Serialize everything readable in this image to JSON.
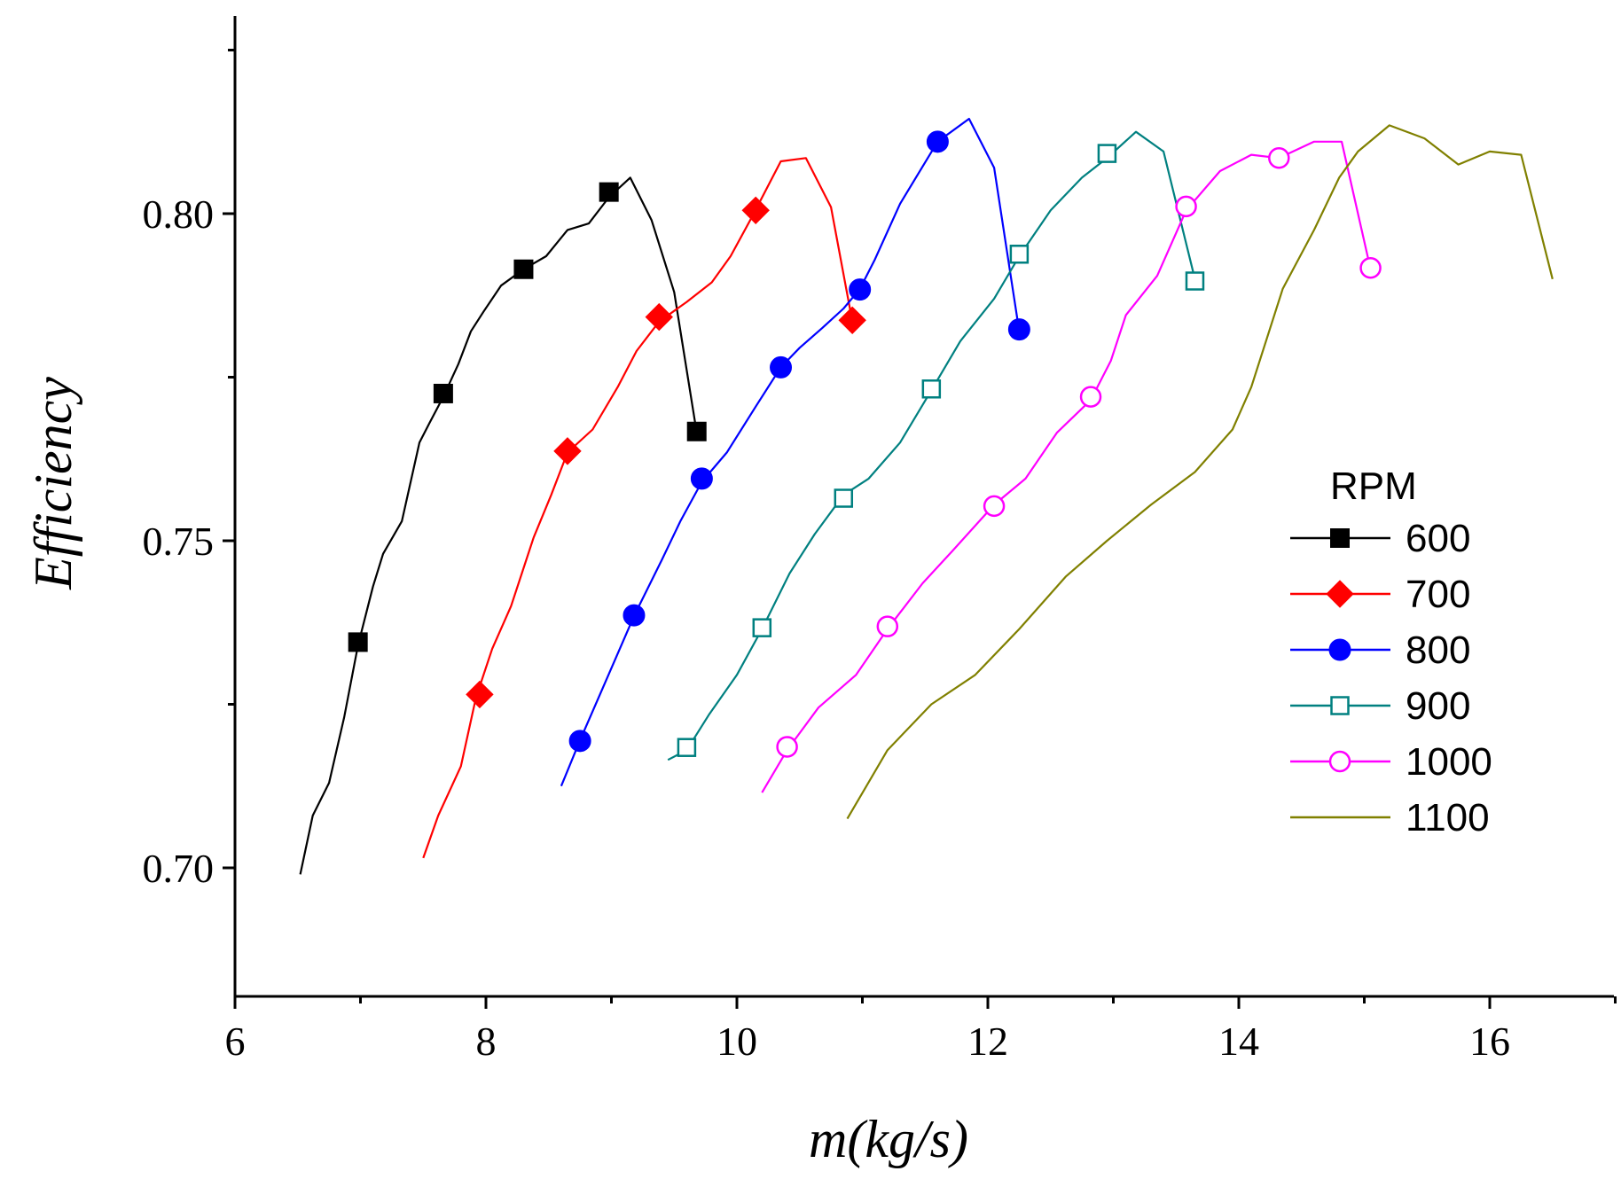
{
  "chart_data": {
    "type": "line",
    "xlabel": "m(kg/s)",
    "ylabel": "Efficiency",
    "xlim": [
      6,
      17
    ],
    "ylim": [
      0.68,
      0.83
    ],
    "xticks": [
      6,
      8,
      10,
      12,
      14,
      16
    ],
    "xtick_labels": [
      "6",
      "8",
      "10",
      "12",
      "14",
      "16"
    ],
    "yticks": [
      0.7,
      0.75,
      0.8
    ],
    "ytick_labels": [
      "0.70",
      "0.75",
      "0.80"
    ],
    "legend_title": "RPM",
    "legend_position": "right",
    "series": [
      {
        "name": "600",
        "color": "#000000",
        "marker": "square-filled",
        "line": [
          [
            6.52,
            0.699
          ],
          [
            6.62,
            0.708
          ],
          [
            6.75,
            0.713
          ],
          [
            6.87,
            0.723
          ],
          [
            6.98,
            0.734
          ],
          [
            7.1,
            0.743
          ],
          [
            7.18,
            0.748
          ],
          [
            7.33,
            0.753
          ],
          [
            7.47,
            0.765
          ],
          [
            7.55,
            0.768
          ],
          [
            7.66,
            0.772
          ],
          [
            7.78,
            0.777
          ],
          [
            7.88,
            0.782
          ],
          [
            7.98,
            0.785
          ],
          [
            8.12,
            0.789
          ],
          [
            8.3,
            0.7915
          ],
          [
            8.48,
            0.7935
          ],
          [
            8.65,
            0.7975
          ],
          [
            8.82,
            0.7985
          ],
          [
            8.98,
            0.8025
          ],
          [
            9.15,
            0.8055
          ],
          [
            9.32,
            0.799
          ],
          [
            9.5,
            0.788
          ],
          [
            9.68,
            0.7665
          ]
        ],
        "markers": [
          [
            6.98,
            0.7345
          ],
          [
            7.66,
            0.7725
          ],
          [
            8.3,
            0.7915
          ],
          [
            8.98,
            0.8033
          ],
          [
            9.68,
            0.7667
          ]
        ]
      },
      {
        "name": "700",
        "color": "#ff0000",
        "marker": "diamond-filled",
        "line": [
          [
            7.5,
            0.7015
          ],
          [
            7.62,
            0.708
          ],
          [
            7.8,
            0.7155
          ],
          [
            7.92,
            0.726
          ],
          [
            8.05,
            0.7335
          ],
          [
            8.2,
            0.74
          ],
          [
            8.38,
            0.7505
          ],
          [
            8.52,
            0.757
          ],
          [
            8.65,
            0.7635
          ],
          [
            8.85,
            0.767
          ],
          [
            9.05,
            0.7735
          ],
          [
            9.2,
            0.779
          ],
          [
            9.38,
            0.7835
          ],
          [
            9.6,
            0.7865
          ],
          [
            9.8,
            0.7895
          ],
          [
            9.95,
            0.7935
          ],
          [
            10.12,
            0.7995
          ],
          [
            10.35,
            0.808
          ],
          [
            10.55,
            0.8085
          ],
          [
            10.75,
            0.801
          ],
          [
            10.92,
            0.7835
          ]
        ],
        "markers": [
          [
            7.95,
            0.7265
          ],
          [
            8.65,
            0.7637
          ],
          [
            9.38,
            0.7842
          ],
          [
            10.15,
            0.8005
          ],
          [
            10.92,
            0.7837
          ]
        ]
      },
      {
        "name": "800",
        "color": "#0000ff",
        "marker": "circle-filled",
        "line": [
          [
            8.6,
            0.7125
          ],
          [
            8.75,
            0.7195
          ],
          [
            8.92,
            0.727
          ],
          [
            9.18,
            0.7385
          ],
          [
            9.4,
            0.747
          ],
          [
            9.55,
            0.753
          ],
          [
            9.72,
            0.759
          ],
          [
            9.92,
            0.7635
          ],
          [
            10.15,
            0.7705
          ],
          [
            10.35,
            0.7765
          ],
          [
            10.5,
            0.7795
          ],
          [
            10.68,
            0.7825
          ],
          [
            10.85,
            0.7855
          ],
          [
            10.98,
            0.7885
          ],
          [
            11.1,
            0.793
          ],
          [
            11.3,
            0.8015
          ],
          [
            11.6,
            0.811
          ],
          [
            11.85,
            0.8145
          ],
          [
            12.05,
            0.807
          ],
          [
            12.25,
            0.782
          ]
        ],
        "markers": [
          [
            8.75,
            0.7194
          ],
          [
            9.18,
            0.7386
          ],
          [
            9.72,
            0.7595
          ],
          [
            10.35,
            0.7765
          ],
          [
            10.98,
            0.7884
          ],
          [
            11.6,
            0.811
          ],
          [
            12.25,
            0.7823
          ]
        ]
      },
      {
        "name": "900",
        "color": "#008080",
        "marker": "square-open",
        "line": [
          [
            9.45,
            0.7165
          ],
          [
            9.6,
            0.718
          ],
          [
            9.78,
            0.7235
          ],
          [
            10.0,
            0.7295
          ],
          [
            10.2,
            0.7365
          ],
          [
            10.42,
            0.745
          ],
          [
            10.62,
            0.751
          ],
          [
            10.85,
            0.757
          ],
          [
            11.05,
            0.7595
          ],
          [
            11.3,
            0.765
          ],
          [
            11.55,
            0.773
          ],
          [
            11.78,
            0.7805
          ],
          [
            12.05,
            0.787
          ],
          [
            12.25,
            0.7935
          ],
          [
            12.5,
            0.8005
          ],
          [
            12.75,
            0.8055
          ],
          [
            12.95,
            0.8085
          ],
          [
            13.18,
            0.8125
          ],
          [
            13.4,
            0.8095
          ],
          [
            13.65,
            0.79
          ]
        ],
        "markers": [
          [
            9.6,
            0.7184
          ],
          [
            10.2,
            0.7367
          ],
          [
            10.85,
            0.7565
          ],
          [
            11.55,
            0.7732
          ],
          [
            12.25,
            0.7938
          ],
          [
            12.95,
            0.8092
          ],
          [
            13.65,
            0.7897
          ]
        ]
      },
      {
        "name": "1000",
        "color": "#ff00ff",
        "marker": "circle-open",
        "line": [
          [
            10.2,
            0.7115
          ],
          [
            10.4,
            0.718
          ],
          [
            10.65,
            0.7245
          ],
          [
            10.95,
            0.7295
          ],
          [
            11.2,
            0.7365
          ],
          [
            11.48,
            0.7435
          ],
          [
            11.72,
            0.7485
          ],
          [
            12.05,
            0.7555
          ],
          [
            12.3,
            0.7595
          ],
          [
            12.55,
            0.7665
          ],
          [
            12.82,
            0.7715
          ],
          [
            12.98,
            0.7775
          ],
          [
            13.1,
            0.7845
          ],
          [
            13.35,
            0.7905
          ],
          [
            13.58,
            0.8005
          ],
          [
            13.85,
            0.8065
          ],
          [
            14.1,
            0.809
          ],
          [
            14.32,
            0.8085
          ],
          [
            14.6,
            0.811
          ],
          [
            14.82,
            0.811
          ],
          [
            15.05,
            0.7915
          ]
        ],
        "markers": [
          [
            10.4,
            0.7185
          ],
          [
            11.2,
            0.7369
          ],
          [
            12.05,
            0.7553
          ],
          [
            12.82,
            0.772
          ],
          [
            13.58,
            0.8011
          ],
          [
            14.32,
            0.8085
          ],
          [
            15.05,
            0.7917
          ]
        ]
      },
      {
        "name": "1100",
        "color": "#808000",
        "marker": "none",
        "line": [
          [
            10.88,
            0.7075
          ],
          [
            11.2,
            0.718
          ],
          [
            11.55,
            0.725
          ],
          [
            11.9,
            0.7295
          ],
          [
            12.25,
            0.7365
          ],
          [
            12.62,
            0.7445
          ],
          [
            12.95,
            0.75
          ],
          [
            13.3,
            0.7555
          ],
          [
            13.65,
            0.7605
          ],
          [
            13.95,
            0.767
          ],
          [
            14.1,
            0.7735
          ],
          [
            14.35,
            0.7885
          ],
          [
            14.6,
            0.7975
          ],
          [
            14.8,
            0.8055
          ],
          [
            14.95,
            0.8095
          ],
          [
            15.2,
            0.8135
          ],
          [
            15.48,
            0.8115
          ],
          [
            15.75,
            0.8075
          ],
          [
            16.0,
            0.8095
          ],
          [
            16.25,
            0.809
          ],
          [
            16.5,
            0.79
          ]
        ],
        "markers": []
      }
    ]
  }
}
